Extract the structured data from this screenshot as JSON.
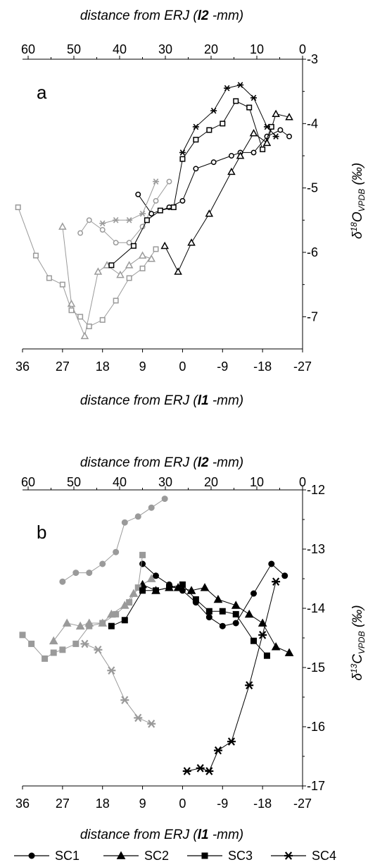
{
  "chart_data": [
    {
      "type": "line",
      "panel": "a",
      "xlabel_top_prefix": "distance from ERJ (",
      "xlabel_top_bold": "l2",
      "xlabel_top_suffix": " -mm)",
      "xlabel_bottom_prefix": "distance from ERJ (",
      "xlabel_bottom_bold": "l1",
      "xlabel_bottom_suffix": " -mm)",
      "ylabel": "δ18O VPDB (‰)",
      "ylim": [
        -3,
        -7.5
      ],
      "xlim_bottom": [
        36,
        -27
      ],
      "x_top_ticks": [
        "60",
        "50",
        "40",
        "30",
        "20",
        "10",
        "0"
      ],
      "x_bottom_ticks": [
        "36",
        "27",
        "18",
        "9",
        "0",
        "-9",
        "-18",
        "-27"
      ],
      "y_ticks": [
        "-3",
        "-4",
        "-5",
        "-6",
        "-7"
      ],
      "series": [
        {
          "name": "SC1",
          "marker": "circle",
          "colored": "black",
          "points": [
            [
              10,
              -5.1
            ],
            [
              7,
              -5.4
            ],
            [
              3,
              -5.3
            ],
            [
              0,
              -5.2
            ],
            [
              -3,
              -4.7
            ],
            [
              -7,
              -4.6
            ],
            [
              -11,
              -4.5
            ],
            [
              -13,
              -4.45
            ],
            [
              -16,
              -4.45
            ],
            [
              -19,
              -4.2
            ],
            [
              -22,
              -4.1
            ],
            [
              -24,
              -4.2
            ]
          ],
          "grey_points": [
            [
              23,
              -5.7
            ],
            [
              21,
              -5.5
            ],
            [
              18,
              -5.65
            ],
            [
              15,
              -5.85
            ],
            [
              12,
              -5.85
            ],
            [
              9,
              -5.6
            ],
            [
              6,
              -5.2
            ],
            [
              3,
              -4.9
            ]
          ]
        },
        {
          "name": "SC2",
          "marker": "triangle",
          "colored": "black",
          "points": [
            [
              4,
              -5.9
            ],
            [
              1,
              -6.3
            ],
            [
              -2,
              -5.85
            ],
            [
              -6,
              -5.4
            ],
            [
              -11,
              -4.75
            ],
            [
              -13,
              -4.5
            ],
            [
              -16,
              -4.15
            ],
            [
              -19,
              -4.3
            ],
            [
              -21,
              -3.85
            ],
            [
              -24,
              -3.9
            ]
          ],
          "grey_points": [
            [
              27,
              -5.6
            ],
            [
              25,
              -6.8
            ],
            [
              22,
              -7.3
            ],
            [
              19,
              -6.3
            ],
            [
              17,
              -6.2
            ],
            [
              14,
              -6.35
            ],
            [
              12,
              -6.2
            ],
            [
              9,
              -6.05
            ],
            [
              7,
              -6.1
            ]
          ]
        },
        {
          "name": "SC3",
          "marker": "square",
          "colored": "black",
          "points": [
            [
              16,
              -6.2
            ],
            [
              11,
              -5.9
            ],
            [
              8,
              -5.5
            ],
            [
              5,
              -5.35
            ],
            [
              2,
              -5.3
            ],
            [
              0,
              -4.55
            ],
            [
              -3,
              -4.25
            ],
            [
              -6,
              -4.1
            ],
            [
              -9,
              -4.0
            ],
            [
              -12,
              -3.65
            ],
            [
              -15,
              -3.75
            ],
            [
              -18,
              -4.4
            ],
            [
              -20,
              -4.05
            ]
          ],
          "grey_points": [
            [
              37,
              -5.3
            ],
            [
              33,
              -6.05
            ],
            [
              30,
              -6.4
            ],
            [
              27,
              -6.5
            ],
            [
              25,
              -6.9
            ],
            [
              23,
              -7.0
            ],
            [
              21,
              -7.15
            ],
            [
              18,
              -7.05
            ],
            [
              15,
              -6.75
            ],
            [
              12,
              -6.4
            ],
            [
              9,
              -6.25
            ],
            [
              6,
              -5.95
            ]
          ]
        },
        {
          "name": "SC4",
          "marker": "asterisk",
          "colored": "black",
          "points": [
            [
              0,
              -4.45
            ],
            [
              -3,
              -4.05
            ],
            [
              -7,
              -3.8
            ],
            [
              -10,
              -3.45
            ],
            [
              -13,
              -3.4
            ],
            [
              -16,
              -3.6
            ],
            [
              -19,
              -4.05
            ],
            [
              -21,
              -4.2
            ]
          ],
          "grey_points": [
            [
              18,
              -5.55
            ],
            [
              15,
              -5.5
            ],
            [
              12,
              -5.5
            ],
            [
              9,
              -5.4
            ],
            [
              6,
              -4.9
            ]
          ]
        }
      ]
    },
    {
      "type": "line",
      "panel": "b",
      "xlabel_top_prefix": "distance from ERJ (",
      "xlabel_top_bold": "l2",
      "xlabel_top_suffix": " -mm)",
      "xlabel_bottom_prefix": "distance from ERJ (",
      "xlabel_bottom_bold": "l1",
      "xlabel_bottom_suffix": " -mm)",
      "ylabel": "δ13C VPDB (‰)",
      "ylim": [
        -12,
        -17
      ],
      "xlim_bottom": [
        36,
        -27
      ],
      "x_top_ticks": [
        "60",
        "50",
        "40",
        "30",
        "20",
        "10",
        "0"
      ],
      "x_bottom_ticks": [
        "36",
        "27",
        "18",
        "9",
        "0",
        "-9",
        "-18",
        "-27"
      ],
      "y_ticks": [
        "-12",
        "-13",
        "-14",
        "-15",
        "-16",
        "-17"
      ],
      "series": [
        {
          "name": "SC1",
          "marker": "circle",
          "colored": "black",
          "points": [
            [
              9,
              -13.25
            ],
            [
              6,
              -13.45
            ],
            [
              3,
              -13.6
            ],
            [
              0,
              -13.7
            ],
            [
              -3,
              -13.9
            ],
            [
              -6,
              -14.15
            ],
            [
              -9,
              -14.3
            ],
            [
              -12,
              -14.25
            ],
            [
              -16,
              -13.75
            ],
            [
              -20,
              -13.25
            ],
            [
              -23,
              -13.45
            ]
          ],
          "grey_points": [
            [
              27,
              -13.55
            ],
            [
              24,
              -13.4
            ],
            [
              21,
              -13.4
            ],
            [
              18,
              -13.25
            ],
            [
              15,
              -13.05
            ],
            [
              13,
              -12.55
            ],
            [
              10,
              -12.45
            ],
            [
              7,
              -12.3
            ],
            [
              4,
              -12.15
            ]
          ]
        },
        {
          "name": "SC2",
          "marker": "triangle",
          "colored": "black",
          "points": [
            [
              9,
              -13.6
            ],
            [
              6,
              -13.7
            ],
            [
              3,
              -13.65
            ],
            [
              1,
              -13.65
            ],
            [
              -2,
              -13.7
            ],
            [
              -5,
              -13.65
            ],
            [
              -8,
              -13.85
            ],
            [
              -12,
              -13.95
            ],
            [
              -15,
              -14.1
            ],
            [
              -18,
              -14.25
            ],
            [
              -21,
              -14.65
            ],
            [
              -24,
              -14.75
            ]
          ],
          "grey_points": [
            [
              29,
              -14.55
            ],
            [
              26,
              -14.25
            ],
            [
              23,
              -14.3
            ],
            [
              21,
              -14.25
            ],
            [
              18,
              -14.25
            ],
            [
              16,
              -14.1
            ],
            [
              13,
              -13.95
            ],
            [
              11,
              -13.75
            ],
            [
              9,
              -13.6
            ],
            [
              7,
              -13.5
            ]
          ]
        },
        {
          "name": "SC3",
          "marker": "square",
          "colored": "black",
          "points": [
            [
              16,
              -14.3
            ],
            [
              13,
              -14.2
            ],
            [
              9,
              -13.7
            ],
            [
              6,
              -13.7
            ],
            [
              3,
              -13.65
            ],
            [
              0,
              -13.6
            ],
            [
              -3,
              -13.85
            ],
            [
              -6,
              -14.05
            ],
            [
              -9,
              -14.05
            ],
            [
              -12,
              -14.1
            ],
            [
              -16,
              -14.55
            ],
            [
              -19,
              -14.8
            ]
          ],
          "grey_points": [
            [
              36,
              -14.45
            ],
            [
              34,
              -14.6
            ],
            [
              31,
              -14.85
            ],
            [
              29,
              -14.75
            ],
            [
              27,
              -14.7
            ],
            [
              24,
              -14.6
            ],
            [
              21,
              -14.3
            ],
            [
              18,
              -14.25
            ],
            [
              15,
              -14.1
            ],
            [
              12,
              -13.9
            ],
            [
              10,
              -13.65
            ],
            [
              9,
              -13.1
            ]
          ]
        },
        {
          "name": "SC4",
          "marker": "asterisk",
          "colored": "black",
          "points": [
            [
              -1,
              -16.75
            ],
            [
              -4,
              -16.7
            ],
            [
              -6,
              -16.75
            ],
            [
              -8,
              -16.4
            ],
            [
              -11,
              -16.25
            ],
            [
              -15,
              -15.3
            ],
            [
              -18,
              -14.45
            ],
            [
              -21,
              -13.55
            ]
          ],
          "grey_points": [
            [
              22,
              -14.6
            ],
            [
              19,
              -14.7
            ],
            [
              16,
              -15.05
            ],
            [
              13,
              -15.55
            ],
            [
              10,
              -15.85
            ],
            [
              7,
              -15.95
            ]
          ]
        }
      ]
    }
  ],
  "legend": {
    "items": [
      "SC1",
      "SC2",
      "SC3",
      "SC4"
    ],
    "markers": [
      "circle",
      "triangle",
      "square",
      "asterisk"
    ],
    "position": "bottom"
  },
  "colors": {
    "black": "#000000",
    "grey": "#9a9a9a"
  }
}
